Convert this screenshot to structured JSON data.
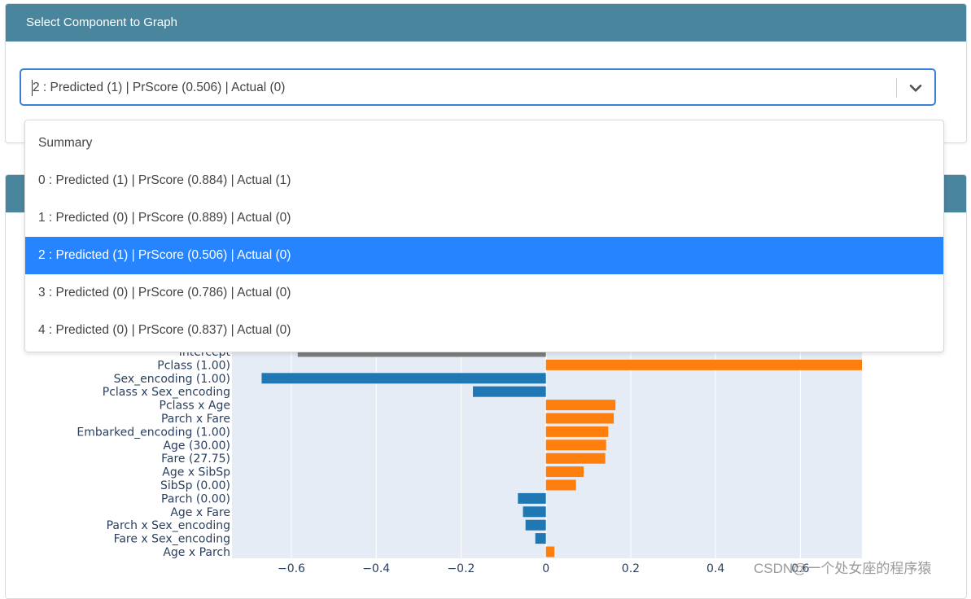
{
  "top_card": {
    "header": "Select Component to Graph",
    "selected_value": "2 : Predicted (1) | PrScore (0.506) | Actual (0)"
  },
  "dropdown": {
    "options": [
      "Summary",
      "0 : Predicted (1) | PrScore (0.884) | Actual (1)",
      "1 : Predicted (0) | PrScore (0.889) | Actual (0)",
      "2 : Predicted (1) | PrScore (0.506) | Actual (0)",
      "3 : Predicted (0) | PrScore (0.786) | Actual (0)",
      "4 : Predicted (0) | PrScore (0.837) | Actual (0)"
    ],
    "selected_index": 3
  },
  "watermark": "CSDN@一个处女座的程序猿",
  "colors": {
    "header": "#4a859e",
    "positive": "#ff7f0e",
    "negative": "#1f77b4",
    "intercept": "#7f7f7f",
    "plot_bg": "#e5ecf6",
    "select_highlight": "#2684ff"
  },
  "chart_data": {
    "type": "bar",
    "orientation": "horizontal",
    "categories": [
      "Intercept",
      "Pclass (1.00)",
      "Sex_encoding (1.00)",
      "Pclass x Sex_encoding",
      "Pclass x Age",
      "Parch x Fare",
      "Embarked_encoding (1.00)",
      "Age (30.00)",
      "Fare (27.75)",
      "Age x SibSp",
      "SibSp (0.00)",
      "Parch (0.00)",
      "Age x Fare",
      "Parch x Sex_encoding",
      "Fare x Sex_encoding",
      "Age x Parch"
    ],
    "values": [
      -0.585,
      0.745,
      -0.67,
      -0.172,
      0.164,
      0.16,
      0.147,
      0.142,
      0.14,
      0.089,
      0.071,
      -0.066,
      -0.054,
      -0.048,
      -0.025,
      0.02
    ],
    "xlim": [
      -0.74,
      0.745
    ],
    "xticks": [
      -0.6,
      -0.4,
      -0.2,
      0,
      0.2,
      0.4,
      0.6
    ],
    "xtick_labels": [
      "−0.6",
      "−0.4",
      "−0.2",
      "0",
      "0.2",
      "0.4",
      "0.6"
    ],
    "grid": true
  }
}
